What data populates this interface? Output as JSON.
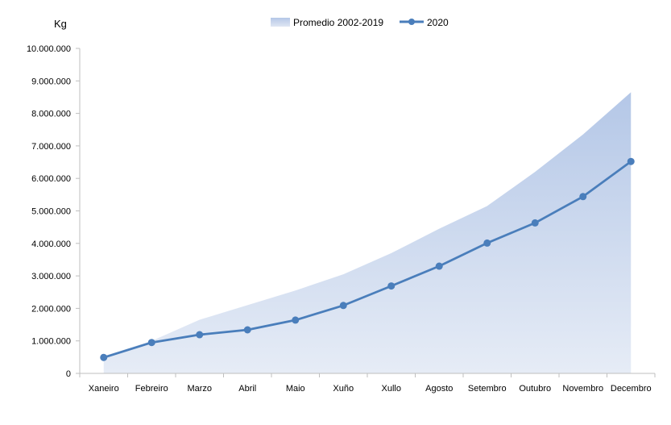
{
  "chart_data": {
    "type": "line",
    "ylabel": "Kg",
    "ylim": [
      0,
      10000000
    ],
    "yticks": [
      "0",
      "1.000.000",
      "2.000.000",
      "3.000.000",
      "4.000.000",
      "5.000.000",
      "6.000.000",
      "7.000.000",
      "8.000.000",
      "9.000.000",
      "10.000.000"
    ],
    "categories": [
      "Xaneiro",
      "Febreiro",
      "Marzo",
      "Abril",
      "Maio",
      "Xuño",
      "Xullo",
      "Agosto",
      "Setembro",
      "Outubro",
      "Novembro",
      "Decembro"
    ],
    "legend_position": "top",
    "grid": false,
    "series": [
      {
        "name": "Promedio 2002-2019",
        "kind": "area",
        "color": "#b4c7e7",
        "values": [
          530000,
          1000000,
          1650000,
          2100000,
          2550000,
          3050000,
          3700000,
          4450000,
          5150000,
          6200000,
          7350000,
          8650000
        ]
      },
      {
        "name": "2020",
        "kind": "line",
        "color": "#4a7ebb",
        "values": [
          490000,
          950000,
          1190000,
          1340000,
          1640000,
          2090000,
          2690000,
          3300000,
          4010000,
          4630000,
          5440000,
          6520000
        ]
      }
    ]
  }
}
